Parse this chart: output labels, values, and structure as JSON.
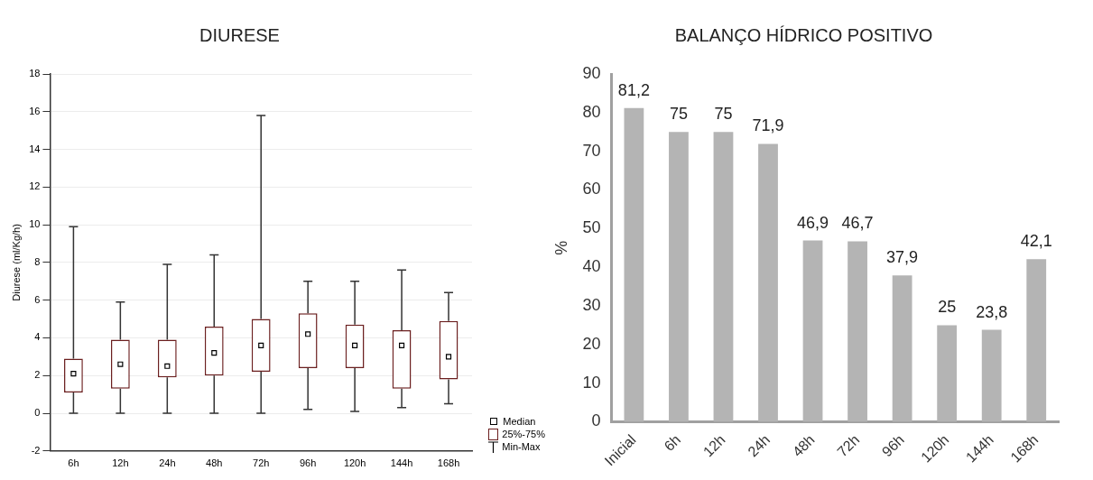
{
  "chart_data": [
    {
      "type": "box",
      "title": "DIURESE",
      "ylabel": "Diurese (ml/Kg/h)",
      "categories": [
        "6h",
        "12h",
        "24h",
        "48h",
        "72h",
        "96h",
        "120h",
        "144h",
        "168h"
      ],
      "color": "#6b1f1f",
      "boxes": [
        {
          "low": 0,
          "q1": 1.1,
          "median": 2.1,
          "q3": 2.9,
          "high": 9.9
        },
        {
          "low": 0,
          "q1": 1.3,
          "median": 2.6,
          "q3": 3.9,
          "high": 5.9
        },
        {
          "low": 0,
          "q1": 1.9,
          "median": 2.5,
          "q3": 3.9,
          "high": 7.9
        },
        {
          "low": 0,
          "q1": 2.0,
          "median": 3.2,
          "q3": 4.6,
          "high": 8.4
        },
        {
          "low": 0,
          "q1": 2.2,
          "median": 3.6,
          "q3": 5.0,
          "high": 15.8
        },
        {
          "low": 0.2,
          "q1": 2.4,
          "median": 4.2,
          "q3": 5.3,
          "high": 7.0
        },
        {
          "low": 0.1,
          "q1": 2.4,
          "median": 3.6,
          "q3": 4.7,
          "high": 7.0
        },
        {
          "low": 0.3,
          "q1": 1.3,
          "median": 3.6,
          "q3": 4.4,
          "high": 7.6
        },
        {
          "low": 0.5,
          "q1": 1.8,
          "median": 3.0,
          "q3": 4.9,
          "high": 6.4
        }
      ],
      "ylim": [
        -2,
        18
      ],
      "yticks": [
        -2,
        0,
        2,
        4,
        6,
        8,
        10,
        12,
        14,
        16,
        18
      ],
      "grid": "y",
      "marker": "square",
      "annotations": [
        "Median",
        "25%-75%",
        "Min-Max"
      ]
    },
    {
      "type": "bar",
      "title": "BALANÇO HÍDRICO POSITIVO",
      "ylabel": "%",
      "categories": [
        "Inicial",
        "6h",
        "12h",
        "24h",
        "48h",
        "72h",
        "96h",
        "120h",
        "144h",
        "168h"
      ],
      "values": [
        81.2,
        75,
        75,
        71.9,
        46.9,
        46.7,
        37.9,
        25,
        23.8,
        42.1
      ],
      "value_labels": [
        "81,2",
        "75",
        "75",
        "71,9",
        "46,9",
        "46,7",
        "37,9",
        "25",
        "23,8",
        "42,1"
      ],
      "color": "#b4b4b4",
      "ylim": [
        0,
        90
      ],
      "yticks": [
        0,
        10,
        20,
        30,
        40,
        50,
        60,
        70,
        80,
        90
      ]
    }
  ]
}
